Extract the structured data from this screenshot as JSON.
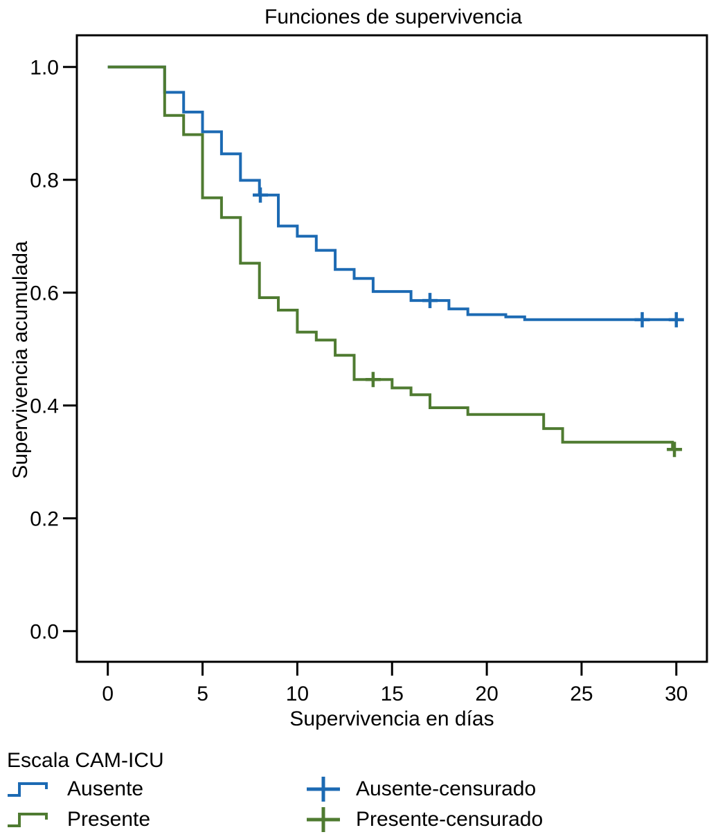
{
  "title": "Funciones de supervivencia",
  "x_axis": {
    "label": "Supervivencia en días"
  },
  "y_axis": {
    "label": "Supervivencia acumulada"
  },
  "legend": {
    "title": "Escala CAM-ICU",
    "entries": [
      {
        "label": "Ausente",
        "symbol": "step-line-icon",
        "color": "#1c6ab3"
      },
      {
        "label": "Presente",
        "symbol": "step-line-icon",
        "color": "#4f7b31"
      },
      {
        "label": "Ausente-censurado",
        "symbol": "plus-censor-icon",
        "color": "#1c6ab3"
      },
      {
        "label": "Presente-censurado",
        "symbol": "plus-censor-icon",
        "color": "#4f7b31"
      }
    ]
  },
  "chart_data": {
    "type": "line",
    "subtype": "kaplan-meier-step-function",
    "title": "Funciones de supervivencia",
    "xlabel": "Supervivencia en días",
    "ylabel": "Supervivencia acumulada",
    "xlim": [
      -1.6,
      31.6
    ],
    "ylim": [
      -0.055,
      1.056
    ],
    "x_ticks": [
      0,
      5,
      10,
      15,
      20,
      25,
      30
    ],
    "x_tick_labels": [
      "0",
      "5",
      "10",
      "15",
      "20",
      "25",
      "30"
    ],
    "y_ticks": [
      0.0,
      0.2,
      0.4,
      0.6,
      0.8,
      1.0
    ],
    "y_tick_labels": [
      "0.0",
      "0.2",
      "0.4",
      "0.6",
      "0.8",
      "1.0"
    ],
    "grid": false,
    "legend_position": "bottom-left",
    "frame_color": "#000000",
    "series": [
      {
        "name": "Ausente",
        "color": "#1c6ab3",
        "steps": [
          [
            0,
            1.0
          ],
          [
            3,
            0.955
          ],
          [
            4,
            0.92
          ],
          [
            5,
            0.885
          ],
          [
            6,
            0.846
          ],
          [
            7,
            0.799
          ],
          [
            8,
            0.773
          ],
          [
            9,
            0.718
          ],
          [
            10,
            0.7
          ],
          [
            11,
            0.675
          ],
          [
            12,
            0.641
          ],
          [
            13,
            0.625
          ],
          [
            14,
            0.602
          ],
          [
            16,
            0.586
          ],
          [
            18,
            0.571
          ],
          [
            19,
            0.561
          ],
          [
            21,
            0.557
          ],
          [
            22,
            0.552
          ]
        ],
        "end_x": 30.3,
        "censored": [
          [
            8.05,
            0.773
          ],
          [
            17,
            0.586
          ],
          [
            28.2,
            0.552
          ],
          [
            30,
            0.552
          ]
        ]
      },
      {
        "name": "Presente",
        "color": "#4f7b31",
        "steps": [
          [
            0,
            1.0
          ],
          [
            3,
            0.914
          ],
          [
            4,
            0.88
          ],
          [
            5,
            0.768
          ],
          [
            6,
            0.733
          ],
          [
            7,
            0.652
          ],
          [
            8,
            0.591
          ],
          [
            9,
            0.569
          ],
          [
            10,
            0.53
          ],
          [
            11,
            0.516
          ],
          [
            12,
            0.489
          ],
          [
            13,
            0.446
          ],
          [
            15,
            0.431
          ],
          [
            16,
            0.419
          ],
          [
            17,
            0.396
          ],
          [
            19,
            0.384
          ],
          [
            23,
            0.359
          ],
          [
            24,
            0.335
          ],
          [
            29.8,
            0.322
          ]
        ],
        "end_x": 30.05,
        "censored": [
          [
            14,
            0.446
          ],
          [
            29.9,
            0.322
          ]
        ]
      }
    ]
  }
}
